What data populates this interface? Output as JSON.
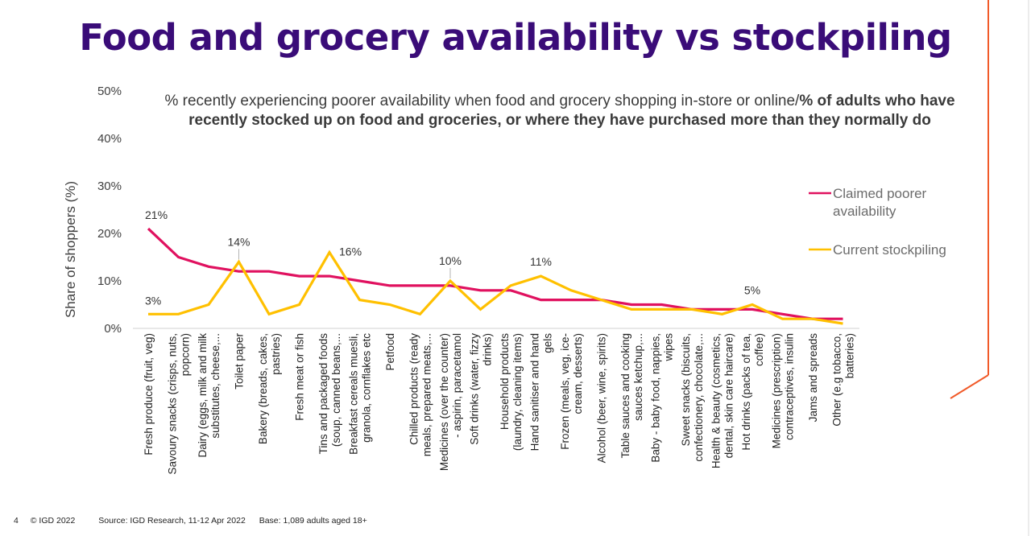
{
  "slide": {
    "title": "Food and grocery availability vs stockpiling",
    "subtitle_normal": "% recently experiencing poorer availability when food and grocery shopping in-store or online/",
    "subtitle_bold": "% of adults who have recently stocked up on food and groceries, or where they have purchased more than they normally do",
    "footer": {
      "page_number": "4",
      "copyright": "© IGD 2022",
      "source": "Source: IGD Research, 11-12 Apr 2022",
      "base": "Base: 1,089 adults aged 18+"
    },
    "accent_colors": {
      "title": "#3a0c78",
      "frame_line": "#f15a29"
    }
  },
  "chart_data": {
    "type": "line",
    "title": "Food and grocery availability vs stockpiling",
    "xlabel": "",
    "ylabel": "Share of shoppers (%)",
    "ylim": [
      0,
      50
    ],
    "yticks": [
      0,
      10,
      20,
      30,
      40,
      50
    ],
    "ytick_labels": [
      "0%",
      "10%",
      "20%",
      "30%",
      "40%",
      "50%"
    ],
    "grid": false,
    "legend_position": "right",
    "categories": [
      "Fresh produce (fruit, veg)",
      "Savoury snacks (crisps, nuts, popcorn)",
      "Dairy (eggs, milk and milk substitutes, cheese,...",
      "Toilet paper",
      "Bakery (breads, cakes, pastries)",
      "Fresh meat or fish",
      "Tins and packaged foods (soup, canned beans,...",
      "Breakfast cereals muesli, granola, cornflakes etc",
      "Petfood",
      "Chilled products (ready meals, prepared meats,...",
      "Medicines (over the counter) - aspirin, paracetamol",
      "Soft drinks (water, fizzy drinks)",
      "Household products (laundry, cleaning items)",
      "Hand sanitiser and hand gels",
      "Frozen (meals, veg, ice-cream, desserts)",
      "Alcohol (beer, wine, spirits)",
      "Table sauces and cooking sauces ketchup,...",
      "Baby - baby food, nappies, wipes",
      "Sweet snacks (biscuits, confectionery, chocolate,...",
      "Health & beauty (cosmetics, dental, skin care haircare)",
      "Hot drinks (packs of tea, coffee)",
      "Medicines (prescription) contraceptives, insulin",
      "Jams and spreads",
      "Other (e.g tobacco, batteries)"
    ],
    "category_label_lines": [
      [
        "Fresh produce (fruit, veg)"
      ],
      [
        "Savoury snacks (crisps, nuts,",
        "popcorn)"
      ],
      [
        "Dairy (eggs, milk and milk",
        "substitutes, cheese,..."
      ],
      [
        "Toilet paper"
      ],
      [
        "Bakery (breads, cakes,",
        "pastries)"
      ],
      [
        "Fresh meat or fish"
      ],
      [
        "Tins and packaged foods",
        "(soup, canned beans,..."
      ],
      [
        "Breakfast cereals muesli,",
        "granola, cornflakes etc"
      ],
      [
        "Petfood"
      ],
      [
        "Chilled products (ready",
        "meals, prepared meats,..."
      ],
      [
        "Medicines (over the counter)",
        "- aspirin, paracetamol"
      ],
      [
        "Soft drinks (water, fizzy",
        "drinks)"
      ],
      [
        "Household products",
        "(laundry, cleaning items)"
      ],
      [
        "Hand sanitiser and hand",
        "gels"
      ],
      [
        "Frozen (meals, veg, ice-",
        "cream, desserts)"
      ],
      [
        "Alcohol (beer, wine, spirits)"
      ],
      [
        "Table sauces and cooking",
        "sauces ketchup,..."
      ],
      [
        "Baby - baby food, nappies,",
        "wipes"
      ],
      [
        "Sweet snacks (biscuits,",
        "confectionery, chocolate,..."
      ],
      [
        "Health & beauty (cosmetics,",
        "dental, skin care haircare)"
      ],
      [
        "Hot drinks (packs of tea,",
        "coffee)"
      ],
      [
        "Medicines (prescription)",
        "contraceptives, insulin"
      ],
      [
        "Jams and spreads"
      ],
      [
        "Other (e.g tobacco,",
        "batteries)"
      ]
    ],
    "series": [
      {
        "name": "Claimed poorer availability",
        "legend_lines": [
          "Claimed poorer",
          "availability"
        ],
        "color": "#e0115f",
        "values": [
          21,
          15,
          13,
          12,
          12,
          11,
          11,
          10,
          9,
          9,
          9,
          8,
          8,
          6,
          6,
          6,
          5,
          5,
          4,
          4,
          4,
          3,
          2,
          2
        ]
      },
      {
        "name": "Current stockpiling",
        "legend_lines": [
          "Current stockpiling"
        ],
        "color": "#ffc000",
        "values": [
          3,
          3,
          5,
          14,
          3,
          5,
          16,
          6,
          5,
          3,
          10,
          4,
          9,
          11,
          8,
          6,
          4,
          4,
          4,
          3,
          5,
          2,
          2,
          1
        ]
      }
    ],
    "annotations": [
      {
        "series": 0,
        "index": 0,
        "text": "21%"
      },
      {
        "series": 1,
        "index": 0,
        "text": "3%"
      },
      {
        "series": 1,
        "index": 3,
        "text": "14%"
      },
      {
        "series": 1,
        "index": 6,
        "text": "16%"
      },
      {
        "series": 1,
        "index": 10,
        "text": "10%"
      },
      {
        "series": 1,
        "index": 13,
        "text": "11%"
      },
      {
        "series": 1,
        "index": 20,
        "text": "5%"
      }
    ]
  }
}
